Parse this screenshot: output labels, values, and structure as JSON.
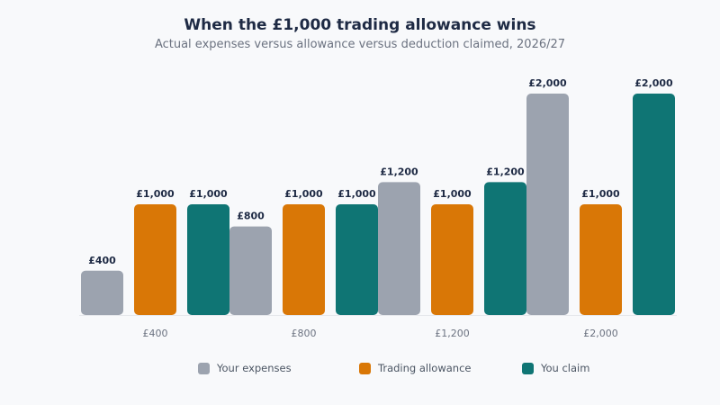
{
  "chart_data": {
    "type": "bar",
    "title": "When the £1,000 trading allowance wins",
    "subtitle": "Actual expenses versus allowance versus deduction claimed, 2026/27",
    "categories": [
      "£400",
      "£800",
      "£1,200",
      "£2,000"
    ],
    "series": [
      {
        "name": "Your expenses",
        "values": [
          400,
          800,
          1200,
          2000
        ],
        "labels": [
          "£400",
          "£800",
          "£1,200",
          "£2,000"
        ],
        "color": "#9ca3af"
      },
      {
        "name": "Trading allowance",
        "values": [
          1000,
          1000,
          1000,
          1000
        ],
        "labels": [
          "£1,000",
          "£1,000",
          "£1,000",
          "£1,000"
        ],
        "color": "#d97706"
      },
      {
        "name": "You claim",
        "values": [
          1000,
          1000,
          1200,
          2000
        ],
        "labels": [
          "£1,000",
          "£1,000",
          "£1,200",
          "£2,000"
        ],
        "color": "#0f7574"
      }
    ],
    "ylim": [
      0,
      2000
    ],
    "grid": false,
    "legend_position": "bottom"
  }
}
